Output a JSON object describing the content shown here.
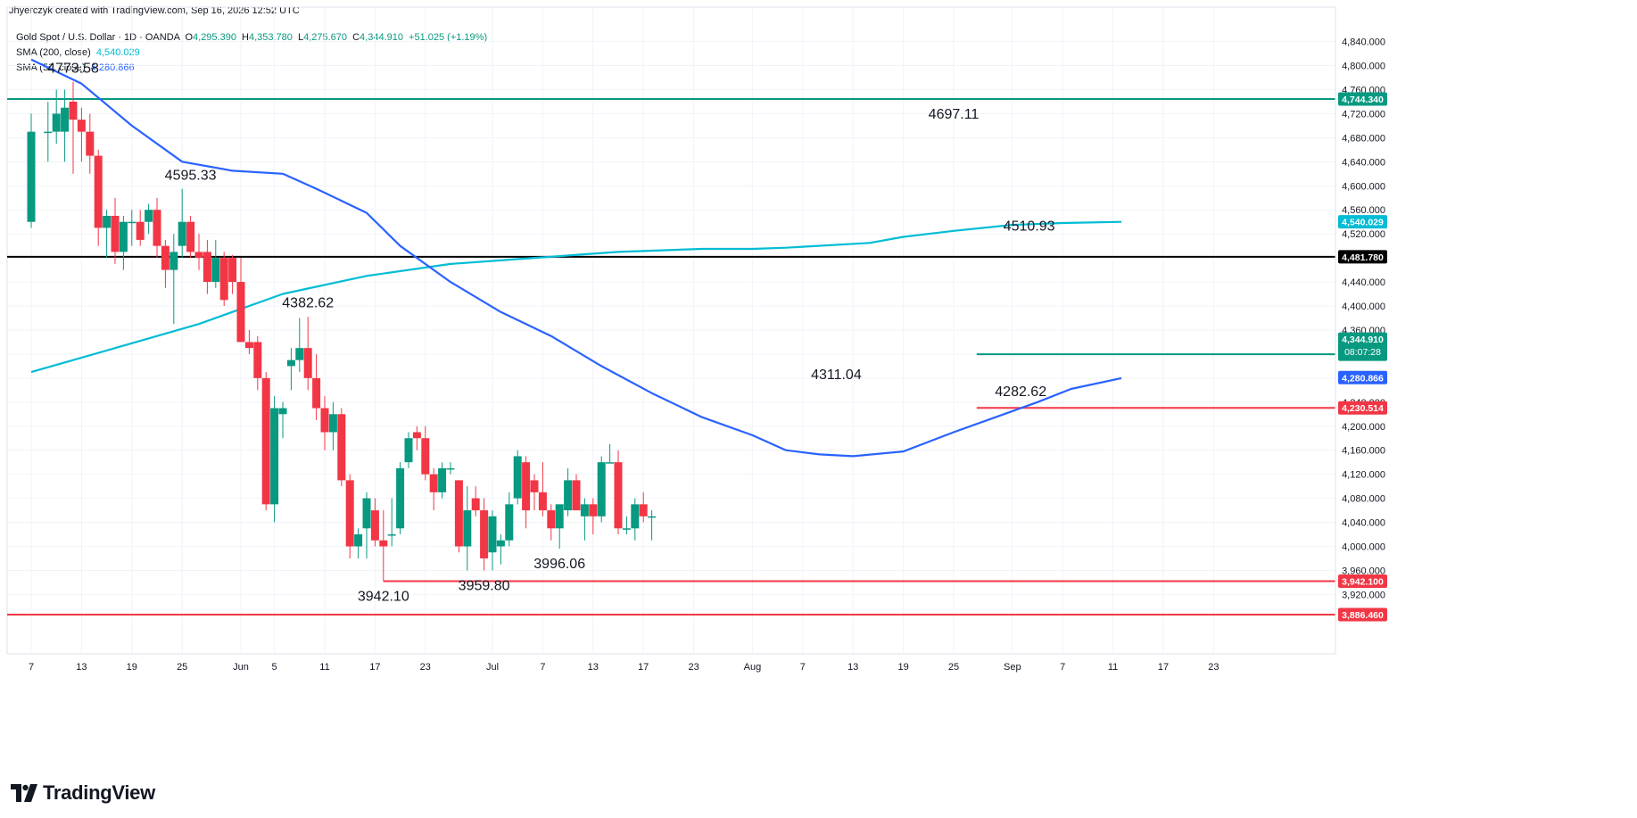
{
  "header": {
    "title": "Jhyerczyk created with TradingView.com, Sep 16, 2026 12:52 UTC"
  },
  "legend": {
    "symbol": "Gold Spot / U.S. Dollar · 1D · OANDA",
    "ohlc": {
      "o_label": "O",
      "o": "4,295.390",
      "h_label": "H",
      "h": "4,353.780",
      "l_label": "L",
      "l": "4,275.670",
      "c_label": "C",
      "c": "4,344.910",
      "change": "+51.025 (+1.19%)"
    },
    "sma200": {
      "label": "SMA (200, close)",
      "value": "4,540.029"
    },
    "sma50": {
      "label": "SMA (50, close)",
      "value": "4,280.866"
    }
  },
  "footer": {
    "brand": "TradingView"
  },
  "colors": {
    "up": "#089981",
    "down": "#f23645",
    "sma200": "#00bcd4",
    "sma50": "#2962ff",
    "level_green": "#089981",
    "level_black": "#000000",
    "level_red": "#f23645",
    "grid": "#f0f3fa",
    "axis_text": "#131722"
  },
  "chart_data": {
    "type": "candlestick",
    "title": "Gold Spot / U.S. Dollar",
    "timeframe": "1D",
    "y_axis": {
      "ticks": [
        3920,
        3960,
        4000,
        4040,
        4080,
        4120,
        4160,
        4200,
        4240,
        4280,
        4320,
        4360,
        4400,
        4440,
        4480,
        4520,
        4560,
        4600,
        4640,
        4680,
        4720,
        4760,
        4800,
        4840
      ],
      "tick_labels": [
        "3,920.000",
        "3,960.000",
        "4,000.000",
        "4,040.000",
        "4,080.000",
        "4,120.000",
        "4,160.000",
        "4,200.000",
        "4,240.000",
        "4,280.000",
        "4,320.000",
        "4,360.000",
        "4,400.000",
        "4,440.000",
        "4,480.000",
        "4,520.000",
        "4,560.000",
        "4,600.000",
        "4,640.000",
        "4,680.000",
        "4,720.000",
        "4,760.000",
        "4,800.000",
        "4,840.000"
      ],
      "range": [
        3860,
        4860
      ]
    },
    "x_axis": {
      "labels": [
        {
          "day": 0,
          "text": "7"
        },
        {
          "day": 6,
          "text": "13"
        },
        {
          "day": 12,
          "text": "19"
        },
        {
          "day": 18,
          "text": "25"
        },
        {
          "day": 25,
          "text": "Jun"
        },
        {
          "day": 29,
          "text": "5"
        },
        {
          "day": 35,
          "text": "11"
        },
        {
          "day": 41,
          "text": "17"
        },
        {
          "day": 47,
          "text": "23"
        },
        {
          "day": 55,
          "text": "Jul"
        },
        {
          "day": 61,
          "text": "7"
        },
        {
          "day": 67,
          "text": "13"
        },
        {
          "day": 73,
          "text": "17"
        },
        {
          "day": 79,
          "text": "23"
        },
        {
          "day": 86,
          "text": "Aug"
        },
        {
          "day": 92,
          "text": "7"
        },
        {
          "day": 98,
          "text": "13"
        },
        {
          "day": 104,
          "text": "19"
        },
        {
          "day": 110,
          "text": "25"
        },
        {
          "day": 117,
          "text": "Sep"
        },
        {
          "day": 123,
          "text": "7"
        },
        {
          "day": 129,
          "text": "11"
        },
        {
          "day": 135,
          "text": "17"
        },
        {
          "day": 141,
          "text": "23"
        }
      ]
    },
    "candles": [
      {
        "d": 0,
        "o": 4540,
        "h": 4720,
        "l": 4530,
        "c": 4690
      },
      {
        "d": 2,
        "o": 4690,
        "h": 4740,
        "l": 4640,
        "c": 4690
      },
      {
        "d": 3,
        "o": 4690,
        "h": 4760,
        "l": 4670,
        "c": 4720
      },
      {
        "d": 4,
        "o": 4690,
        "h": 4760,
        "l": 4640,
        "c": 4730
      },
      {
        "d": 5,
        "o": 4740,
        "h": 4773,
        "l": 4620,
        "c": 4710
      },
      {
        "d": 6,
        "o": 4710,
        "h": 4730,
        "l": 4640,
        "c": 4690
      },
      {
        "d": 7,
        "o": 4690,
        "h": 4720,
        "l": 4620,
        "c": 4650
      },
      {
        "d": 8,
        "o": 4650,
        "h": 4660,
        "l": 4500,
        "c": 4530
      },
      {
        "d": 9,
        "o": 4530,
        "h": 4560,
        "l": 4480,
        "c": 4550
      },
      {
        "d": 10,
        "o": 4550,
        "h": 4580,
        "l": 4470,
        "c": 4490
      },
      {
        "d": 11,
        "o": 4490,
        "h": 4550,
        "l": 4460,
        "c": 4540
      },
      {
        "d": 12,
        "o": 4540,
        "h": 4560,
        "l": 4500,
        "c": 4540
      },
      {
        "d": 13,
        "o": 4540,
        "h": 4560,
        "l": 4500,
        "c": 4510
      },
      {
        "d": 14,
        "o": 4540,
        "h": 4570,
        "l": 4520,
        "c": 4560
      },
      {
        "d": 15,
        "o": 4560,
        "h": 4580,
        "l": 4480,
        "c": 4500
      },
      {
        "d": 16,
        "o": 4500,
        "h": 4510,
        "l": 4430,
        "c": 4460
      },
      {
        "d": 17,
        "o": 4460,
        "h": 4520,
        "l": 4370,
        "c": 4490
      },
      {
        "d": 18,
        "o": 4500,
        "h": 4595,
        "l": 4480,
        "c": 4540
      },
      {
        "d": 19,
        "o": 4540,
        "h": 4550,
        "l": 4480,
        "c": 4490
      },
      {
        "d": 20,
        "o": 4490,
        "h": 4520,
        "l": 4460,
        "c": 4480
      },
      {
        "d": 21,
        "o": 4490,
        "h": 4510,
        "l": 4420,
        "c": 4440
      },
      {
        "d": 22,
        "o": 4440,
        "h": 4510,
        "l": 4430,
        "c": 4480
      },
      {
        "d": 23,
        "o": 4480,
        "h": 4490,
        "l": 4400,
        "c": 4410
      },
      {
        "d": 24,
        "o": 4480,
        "h": 4485,
        "l": 4420,
        "c": 4440
      },
      {
        "d": 25,
        "o": 4440,
        "h": 4480,
        "l": 4340,
        "c": 4340
      },
      {
        "d": 26,
        "o": 4340,
        "h": 4360,
        "l": 4320,
        "c": 4330
      },
      {
        "d": 27,
        "o": 4340,
        "h": 4350,
        "l": 4260,
        "c": 4280
      },
      {
        "d": 28,
        "o": 4280,
        "h": 4290,
        "l": 4060,
        "c": 4070
      },
      {
        "d": 29,
        "o": 4070,
        "h": 4250,
        "l": 4040,
        "c": 4230
      },
      {
        "d": 30,
        "o": 4220,
        "h": 4240,
        "l": 4180,
        "c": 4230
      },
      {
        "d": 31,
        "o": 4300,
        "h": 4330,
        "l": 4260,
        "c": 4310
      },
      {
        "d": 32,
        "o": 4310,
        "h": 4380,
        "l": 4290,
        "c": 4330
      },
      {
        "d": 33,
        "o": 4330,
        "h": 4382,
        "l": 4260,
        "c": 4280
      },
      {
        "d": 34,
        "o": 4280,
        "h": 4320,
        "l": 4210,
        "c": 4230
      },
      {
        "d": 35,
        "o": 4230,
        "h": 4250,
        "l": 4160,
        "c": 4190
      },
      {
        "d": 36,
        "o": 4190,
        "h": 4240,
        "l": 4160,
        "c": 4220
      },
      {
        "d": 37,
        "o": 4220,
        "h": 4230,
        "l": 4100,
        "c": 4110
      },
      {
        "d": 38,
        "o": 4110,
        "h": 4120,
        "l": 3980,
        "c": 4000
      },
      {
        "d": 39,
        "o": 4000,
        "h": 4030,
        "l": 3980,
        "c": 4020
      },
      {
        "d": 40,
        "o": 4030,
        "h": 4090,
        "l": 3980,
        "c": 4080
      },
      {
        "d": 41,
        "o": 4060,
        "h": 4080,
        "l": 4000,
        "c": 4010
      },
      {
        "d": 42,
        "o": 4010,
        "h": 4060,
        "l": 3942,
        "c": 4000
      },
      {
        "d": 43,
        "o": 4020,
        "h": 4080,
        "l": 4000,
        "c": 4020
      },
      {
        "d": 44,
        "o": 4030,
        "h": 4140,
        "l": 4020,
        "c": 4130
      },
      {
        "d": 45,
        "o": 4140,
        "h": 4190,
        "l": 4130,
        "c": 4180
      },
      {
        "d": 46,
        "o": 4190,
        "h": 4200,
        "l": 4160,
        "c": 4180
      },
      {
        "d": 47,
        "o": 4180,
        "h": 4200,
        "l": 4110,
        "c": 4120
      },
      {
        "d": 48,
        "o": 4120,
        "h": 4130,
        "l": 4060,
        "c": 4090
      },
      {
        "d": 49,
        "o": 4090,
        "h": 4140,
        "l": 4080,
        "c": 4130
      },
      {
        "d": 50,
        "o": 4130,
        "h": 4140,
        "l": 4120,
        "c": 4130
      },
      {
        "d": 51,
        "o": 4110,
        "h": 4110,
        "l": 3990,
        "c": 4000
      },
      {
        "d": 52,
        "o": 4000,
        "h": 4100,
        "l": 3960,
        "c": 4060
      },
      {
        "d": 53,
        "o": 4080,
        "h": 4100,
        "l": 4050,
        "c": 4060
      },
      {
        "d": 54,
        "o": 4060,
        "h": 4080,
        "l": 3960,
        "c": 3980
      },
      {
        "d": 55,
        "o": 3990,
        "h": 4060,
        "l": 3960,
        "c": 4050
      },
      {
        "d": 56,
        "o": 4000,
        "h": 4020,
        "l": 3970,
        "c": 4010
      },
      {
        "d": 57,
        "o": 4010,
        "h": 4090,
        "l": 4000,
        "c": 4070
      },
      {
        "d": 58,
        "o": 4080,
        "h": 4160,
        "l": 4070,
        "c": 4150
      },
      {
        "d": 59,
        "o": 4140,
        "h": 4150,
        "l": 4030,
        "c": 4060
      },
      {
        "d": 60,
        "o": 4110,
        "h": 4120,
        "l": 4060,
        "c": 4090
      },
      {
        "d": 61,
        "o": 4090,
        "h": 4140,
        "l": 4050,
        "c": 4060
      },
      {
        "d": 62,
        "o": 4060,
        "h": 4070,
        "l": 4010,
        "c": 4030
      },
      {
        "d": 63,
        "o": 4030,
        "h": 4070,
        "l": 3996,
        "c": 4070
      },
      {
        "d": 64,
        "o": 4060,
        "h": 4130,
        "l": 4050,
        "c": 4110
      },
      {
        "d": 65,
        "o": 4110,
        "h": 4120,
        "l": 4060,
        "c": 4060
      },
      {
        "d": 66,
        "o": 4050,
        "h": 4080,
        "l": 4010,
        "c": 4070
      },
      {
        "d": 67,
        "o": 4070,
        "h": 4080,
        "l": 4020,
        "c": 4050
      },
      {
        "d": 68,
        "o": 4050,
        "h": 4150,
        "l": 4040,
        "c": 4140
      },
      {
        "d": 69,
        "o": 4140,
        "h": 4170,
        "l": 4140,
        "c": 4140
      },
      {
        "d": 70,
        "o": 4140,
        "h": 4160,
        "l": 4020,
        "c": 4030
      },
      {
        "d": 71,
        "o": 4030,
        "h": 4050,
        "l": 4020,
        "c": 4030
      },
      {
        "d": 72,
        "o": 4030,
        "h": 4080,
        "l": 4010,
        "c": 4070
      },
      {
        "d": 73,
        "o": 4070,
        "h": 4090,
        "l": 4040,
        "c": 4050
      },
      {
        "d": 74,
        "o": 4050,
        "h": 4060,
        "l": 4010,
        "c": 4050
      }
    ],
    "sma200": {
      "name": "SMA (200, close)",
      "points": [
        [
          0,
          4290
        ],
        [
          10,
          4330
        ],
        [
          20,
          4370
        ],
        [
          30,
          4420
        ],
        [
          40,
          4450
        ],
        [
          50,
          4470
        ],
        [
          60,
          4480
        ],
        [
          70,
          4490
        ],
        [
          80,
          4495
        ],
        [
          86,
          4495
        ],
        [
          90,
          4497
        ],
        [
          100,
          4505
        ],
        [
          104,
          4515
        ],
        [
          110,
          4525
        ],
        [
          117,
          4535
        ],
        [
          123,
          4538
        ],
        [
          130,
          4540
        ]
      ]
    },
    "sma50": {
      "name": "SMA (50, close)",
      "points": [
        [
          0,
          4810
        ],
        [
          6,
          4770
        ],
        [
          12,
          4700
        ],
        [
          18,
          4640
        ],
        [
          24,
          4625
        ],
        [
          30,
          4620
        ],
        [
          34,
          4595
        ],
        [
          40,
          4555
        ],
        [
          44,
          4500
        ],
        [
          50,
          4440
        ],
        [
          56,
          4390
        ],
        [
          62,
          4350
        ],
        [
          68,
          4300
        ],
        [
          74,
          4255
        ],
        [
          80,
          4215
        ],
        [
          86,
          4185
        ],
        [
          90,
          4160
        ],
        [
          94,
          4153
        ],
        [
          98,
          4150
        ],
        [
          104,
          4158
        ],
        [
          110,
          4190
        ],
        [
          116,
          4220
        ],
        [
          120,
          4240
        ],
        [
          124,
          4262
        ],
        [
          130,
          4280
        ]
      ]
    },
    "levels": [
      {
        "value": 4744.34,
        "label": "4,744.340",
        "color": "#089981"
      },
      {
        "value": 4481.78,
        "label": "4,481.780",
        "color": "#000000"
      },
      {
        "value": 4319.605,
        "label": "4,319.605",
        "color": "#089981"
      },
      {
        "value": 4230.514,
        "label": "4,230.514",
        "color": "#f23645"
      },
      {
        "value": 3942.1,
        "label": "3,942.100",
        "color": "#f23645"
      },
      {
        "value": 3886.46,
        "label": "3,886.460",
        "color": "#f23645"
      }
    ],
    "price_tags": [
      {
        "value": 4344.91,
        "label": "4,344.910",
        "sub": "08:07:28",
        "color": "#089981"
      },
      {
        "value": 4540.029,
        "label": "4,540.029",
        "color": "#00bcd4"
      },
      {
        "value": 4280.866,
        "label": "4,280.866",
        "color": "#2962ff"
      }
    ],
    "annotations": [
      {
        "text": "4773.58",
        "day": 5,
        "value": 4773.58,
        "pos": "above"
      },
      {
        "text": "4595.33",
        "day": 19,
        "value": 4595.33,
        "pos": "above"
      },
      {
        "text": "4382.62",
        "day": 33,
        "value": 4382.62,
        "pos": "above"
      },
      {
        "text": "3942.10",
        "day": 42,
        "value": 3942.1,
        "pos": "below"
      },
      {
        "text": "3959.80",
        "day": 54,
        "value": 3959.8,
        "pos": "below"
      },
      {
        "text": "3996.06",
        "day": 63,
        "value": 3996.06,
        "pos": "below"
      },
      {
        "text": "4311.04",
        "day": 96,
        "value": 4311.04,
        "pos": "below"
      },
      {
        "text": "4697.11",
        "day": 110,
        "value": 4697.11,
        "pos": "above"
      },
      {
        "text": "4510.93",
        "day": 119,
        "value": 4510.93,
        "pos": "above"
      },
      {
        "text": "4282.62",
        "day": 118,
        "value": 4282.62,
        "pos": "below"
      }
    ]
  }
}
